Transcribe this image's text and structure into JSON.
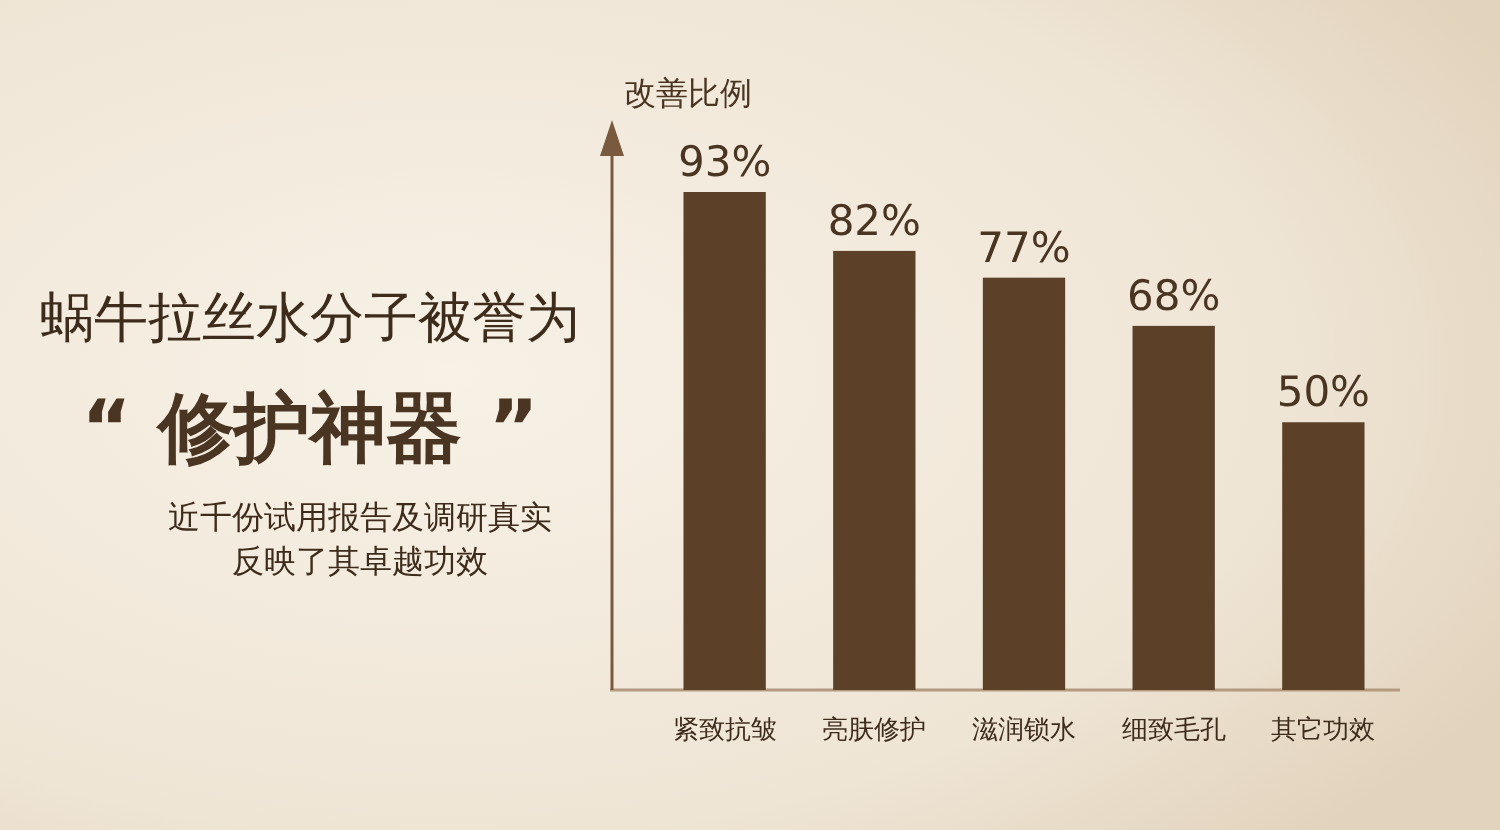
{
  "chart_data": {
    "type": "bar",
    "title": "蜗牛拉丝水分子被誉为",
    "subtitle": "“ 修护神器 ”",
    "annotations": [
      "近千份试用报告及调研真实",
      "反映了其卓越功效"
    ],
    "ylabel": "改善比例",
    "categories": [
      "紧致抗皱",
      "亮肤修护",
      "滋润锁水",
      "细致毛孔",
      "其它功效"
    ],
    "values": [
      93,
      82,
      77,
      68,
      50
    ],
    "value_labels": [
      "93%",
      "82%",
      "77%",
      "68%",
      "50%"
    ],
    "color": "#5c4128"
  }
}
